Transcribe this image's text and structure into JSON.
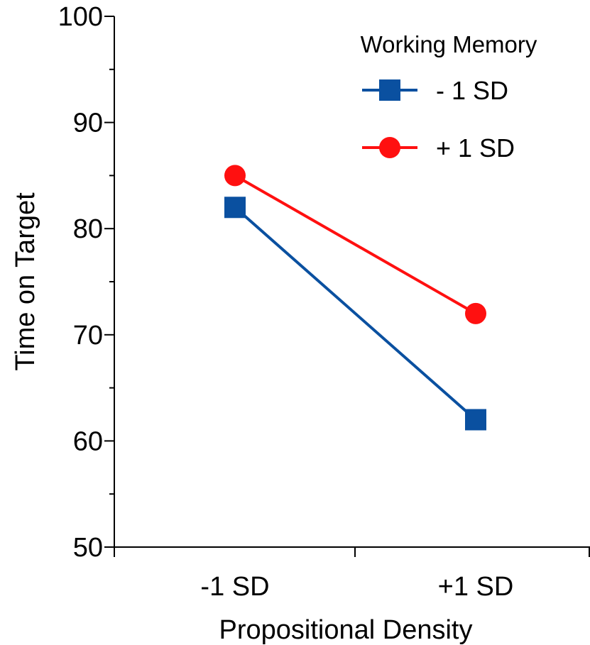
{
  "chart_data": {
    "type": "line",
    "title": "",
    "xlabel": "Propositional Density",
    "ylabel": "Time on Target",
    "categories": [
      "-1 SD",
      "+1 SD"
    ],
    "ylim": [
      50,
      100
    ],
    "yticks": [
      50,
      60,
      70,
      80,
      90,
      100
    ],
    "yticks_text": [
      "50",
      "60",
      "70",
      "80",
      "90",
      "100"
    ],
    "grid": false,
    "legend": {
      "title": "Working Memory",
      "placement": "top-right"
    },
    "series": [
      {
        "name": "- 1 SD",
        "values": [
          82,
          62
        ],
        "color": "#0a50a0",
        "marker": "square"
      },
      {
        "name": "+ 1 SD",
        "values": [
          85,
          72
        ],
        "color": "#ff1010",
        "marker": "circle"
      }
    ]
  }
}
